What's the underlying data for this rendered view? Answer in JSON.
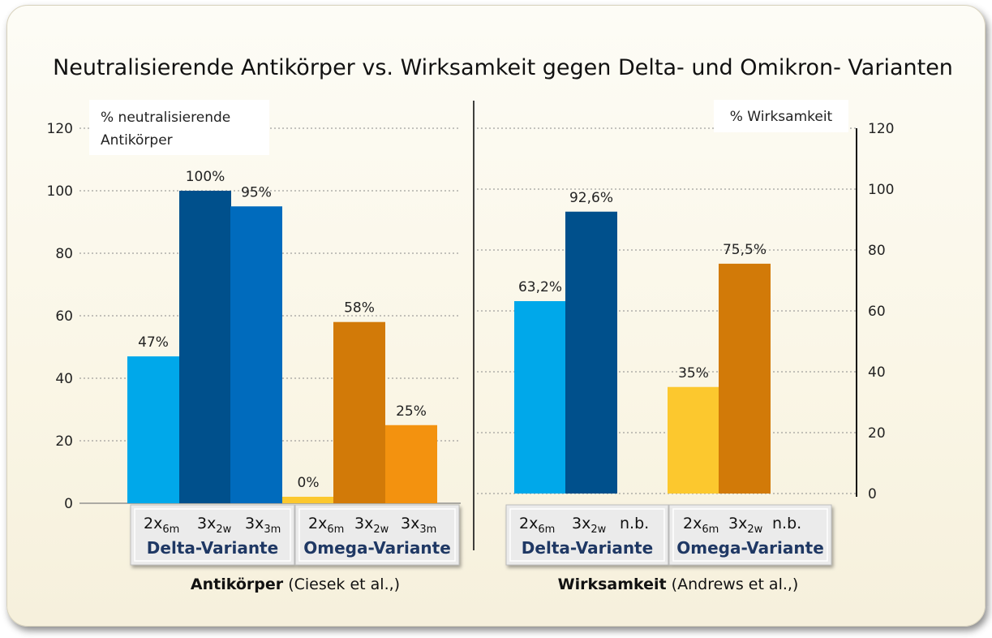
{
  "chart_data": [
    {
      "type": "bar",
      "title": "Neutralisierende Antikörper vs. Wirksamkeit gegen Delta- und Omikron- Varianten",
      "ylabel": "% neutralisierende Antikörper",
      "ylim": [
        0,
        120
      ],
      "yticks": [
        0,
        20,
        40,
        60,
        80,
        100,
        120
      ],
      "xlabel": "Antikörper (Ciesek et al.,)",
      "xlabel_bold": "Antikörper",
      "xlabel_rest": " (Ciesek et al.,)",
      "groups": [
        {
          "name": "Delta-Variante",
          "bars": [
            {
              "sub": [
                "2x",
                "6m"
              ],
              "value": 47,
              "label": "47%",
              "color": "#00a8ea"
            },
            {
              "sub": [
                "3x",
                "2w"
              ],
              "value": 100,
              "label": "100%",
              "color": "#00508c"
            },
            {
              "sub": [
                "3x",
                "3m"
              ],
              "value": 95,
              "label": "95%",
              "color": "#006bbd"
            }
          ]
        },
        {
          "name": "Omega-Variante",
          "bars": [
            {
              "sub": [
                "2x",
                "6m"
              ],
              "value": 0,
              "label": "0%",
              "color": "#fcc82e"
            },
            {
              "sub": [
                "3x",
                "2w"
              ],
              "value": 58,
              "label": "58%",
              "color": "#d27a08"
            },
            {
              "sub": [
                "3x",
                "3m"
              ],
              "value": 25,
              "label": "25%",
              "color": "#f3920f"
            }
          ]
        }
      ]
    },
    {
      "type": "bar",
      "ylabel": "% Wirksamkeit",
      "ylim": [
        0,
        120
      ],
      "yticks": [
        0,
        20,
        40,
        60,
        80,
        100,
        120
      ],
      "xlabel": "Wirksamkeit (Andrews et al.,)",
      "xlabel_bold": "Wirksamkeit",
      "xlabel_rest": " (Andrews et al.,)",
      "groups": [
        {
          "name": "Delta-Variante",
          "bars": [
            {
              "sub": [
                "2x",
                "6m"
              ],
              "value": 63.2,
              "label": "63,2%",
              "color": "#00a8ea"
            },
            {
              "sub": [
                "3x",
                "2w"
              ],
              "value": 92.6,
              "label": "92,6%",
              "color": "#00508c"
            },
            {
              "sub": [
                "n.b.",
                ""
              ],
              "value": null,
              "label": "",
              "color": ""
            }
          ]
        },
        {
          "name": "Omega-Variante",
          "bars": [
            {
              "sub": [
                "2x",
                "6m"
              ],
              "value": 35,
              "label": "35%",
              "color": "#fcc82e"
            },
            {
              "sub": [
                "3x",
                "2w"
              ],
              "value": 75.5,
              "label": "75,5%",
              "color": "#d27a08"
            },
            {
              "sub": [
                "n.b.",
                ""
              ],
              "value": null,
              "label": "",
              "color": ""
            }
          ]
        }
      ]
    }
  ]
}
